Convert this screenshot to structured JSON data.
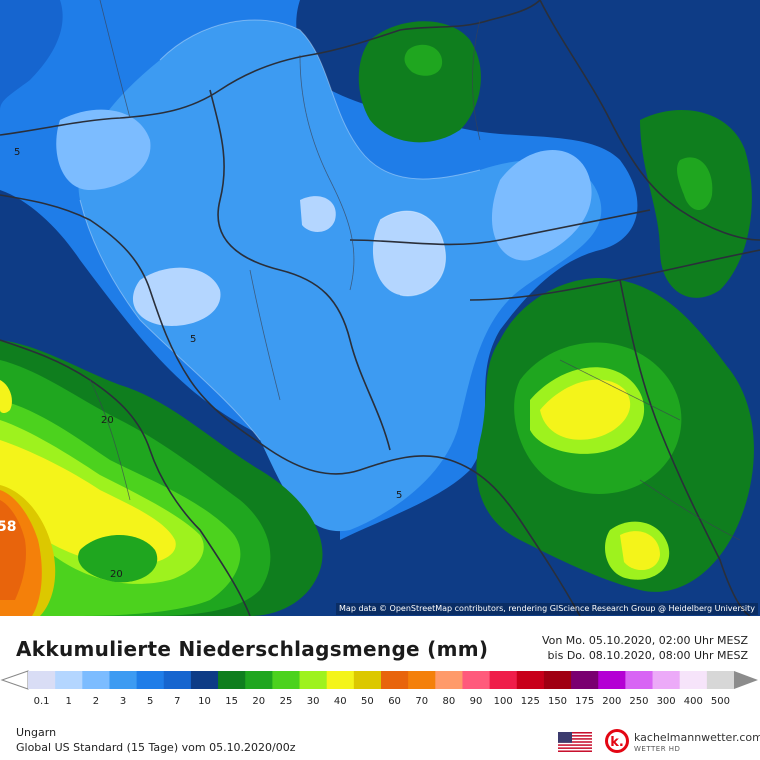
{
  "map": {
    "attribution": "Map data © OpenStreetMap contributors, rendering GIScience Research Group @ Heidelberg University",
    "contour_labels": [
      "5",
      "5",
      "5",
      "20",
      "20",
      "58"
    ]
  },
  "header": {
    "title": "Akkumulierte Niederschlagsmenge (mm)",
    "period_from": "Von Mo. 05.10.2020, 02:00 Uhr MESZ",
    "period_to": "bis Do. 08.10.2020, 08:00 Uhr MESZ"
  },
  "legend": {
    "labels": [
      "0.1",
      "1",
      "2",
      "3",
      "5",
      "7",
      "10",
      "15",
      "20",
      "25",
      "30",
      "40",
      "50",
      "60",
      "70",
      "80",
      "90",
      "100",
      "125",
      "150",
      "175",
      "200",
      "250",
      "300",
      "400",
      "500"
    ],
    "colors": [
      "#d9ddf5",
      "#b4d6ff",
      "#7cbcff",
      "#3d9bf2",
      "#1f7de8",
      "#1665cf",
      "#0e3c86",
      "#0f7e1e",
      "#1fa61f",
      "#4cd21e",
      "#9ef21e",
      "#f4f41a",
      "#dcc800",
      "#e8640c",
      "#f4800a",
      "#ff9a6a",
      "#ff5a7c",
      "#ef1e4a",
      "#c8001a",
      "#a00012",
      "#7a0070",
      "#b400d4",
      "#d864f4",
      "#ecaaf8",
      "#f6e4fa",
      "#d7d7d7"
    ]
  },
  "footer": {
    "region": "Ungarn",
    "model": "Global US Standard (15 Tage) vom  05.10.2020/00z",
    "brand": "kachelmannwetter.com",
    "brand_sub": "WETTER HD"
  }
}
